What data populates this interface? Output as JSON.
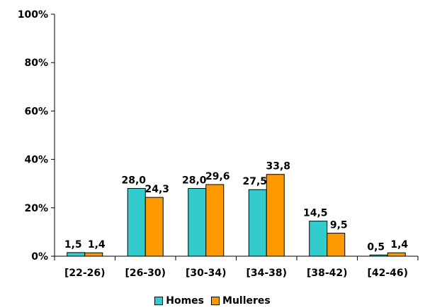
{
  "chart_data": {
    "type": "bar",
    "categories": [
      "[22-26)",
      "[26-30)",
      "[30-34)",
      "[34-38)",
      "[38-42)",
      "[42-46)"
    ],
    "series": [
      {
        "name": "Homes",
        "values": [
          1.5,
          28.0,
          28.0,
          27.5,
          14.5,
          0.5
        ],
        "labels": [
          "1,5",
          "28,0",
          "28,0",
          "27,5",
          "14,5",
          "0,5"
        ],
        "color": "#33CCCC"
      },
      {
        "name": "Mulleres",
        "values": [
          1.4,
          24.3,
          29.6,
          33.8,
          9.5,
          1.4
        ],
        "labels": [
          "1,4",
          "24,3",
          "29,6",
          "33,8",
          "9,5",
          "1,4"
        ],
        "color": "#FF9900"
      }
    ],
    "ylim": [
      0,
      100
    ],
    "yticks": [
      0,
      20,
      40,
      60,
      80,
      100
    ],
    "ytick_labels": [
      "0%",
      "20%",
      "40%",
      "60%",
      "80%",
      "100%"
    ],
    "title": "",
    "xlabel": "",
    "ylabel": "",
    "grid": false,
    "legend_position": "bottom"
  }
}
